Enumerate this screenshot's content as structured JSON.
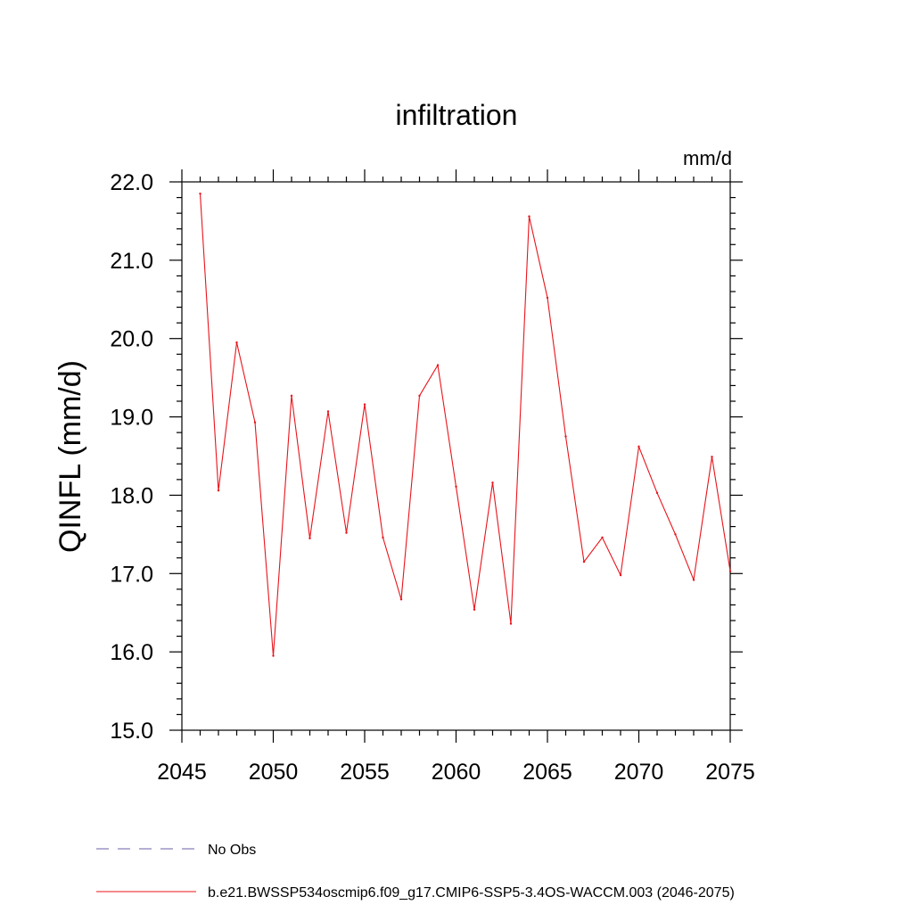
{
  "chart_data": {
    "type": "line",
    "title": "infiltration",
    "units": "mm/d",
    "ylabel": "QINFL  (mm/d)",
    "xlabel": "",
    "xlim": [
      2045,
      2075
    ],
    "ylim": [
      15.0,
      22.0
    ],
    "x_ticks": [
      2045,
      2050,
      2055,
      2060,
      2065,
      2070,
      2075
    ],
    "y_ticks": [
      "15.0",
      "16.0",
      "17.0",
      "18.0",
      "19.0",
      "20.0",
      "21.0",
      "22.0"
    ],
    "grid": false,
    "legend_position": "bottom-left",
    "series": [
      {
        "name": "No Obs",
        "color": "#6b5fa8",
        "style": "dashed",
        "x": [],
        "values": []
      },
      {
        "name": "b.e21.BWSSP534oscmip6.f09_g17.CMIP6-SSP5-3.4OS-WACCM.003 (2046-2075)",
        "color": "#e8141b",
        "style": "solid",
        "x": [
          2046,
          2047,
          2048,
          2049,
          2050,
          2051,
          2052,
          2053,
          2054,
          2055,
          2056,
          2057,
          2058,
          2059,
          2060,
          2061,
          2062,
          2063,
          2064,
          2065,
          2066,
          2067,
          2068,
          2069,
          2070,
          2071,
          2072,
          2073,
          2074,
          2075
        ],
        "values": [
          21.85,
          18.06,
          19.95,
          18.93,
          15.95,
          19.27,
          17.45,
          19.07,
          17.52,
          19.16,
          17.46,
          16.67,
          19.27,
          19.66,
          18.11,
          16.54,
          18.16,
          16.36,
          21.56,
          20.52,
          18.75,
          17.15,
          17.46,
          16.98,
          18.62,
          18.03,
          17.5,
          16.92,
          18.49,
          17.03
        ]
      }
    ]
  }
}
